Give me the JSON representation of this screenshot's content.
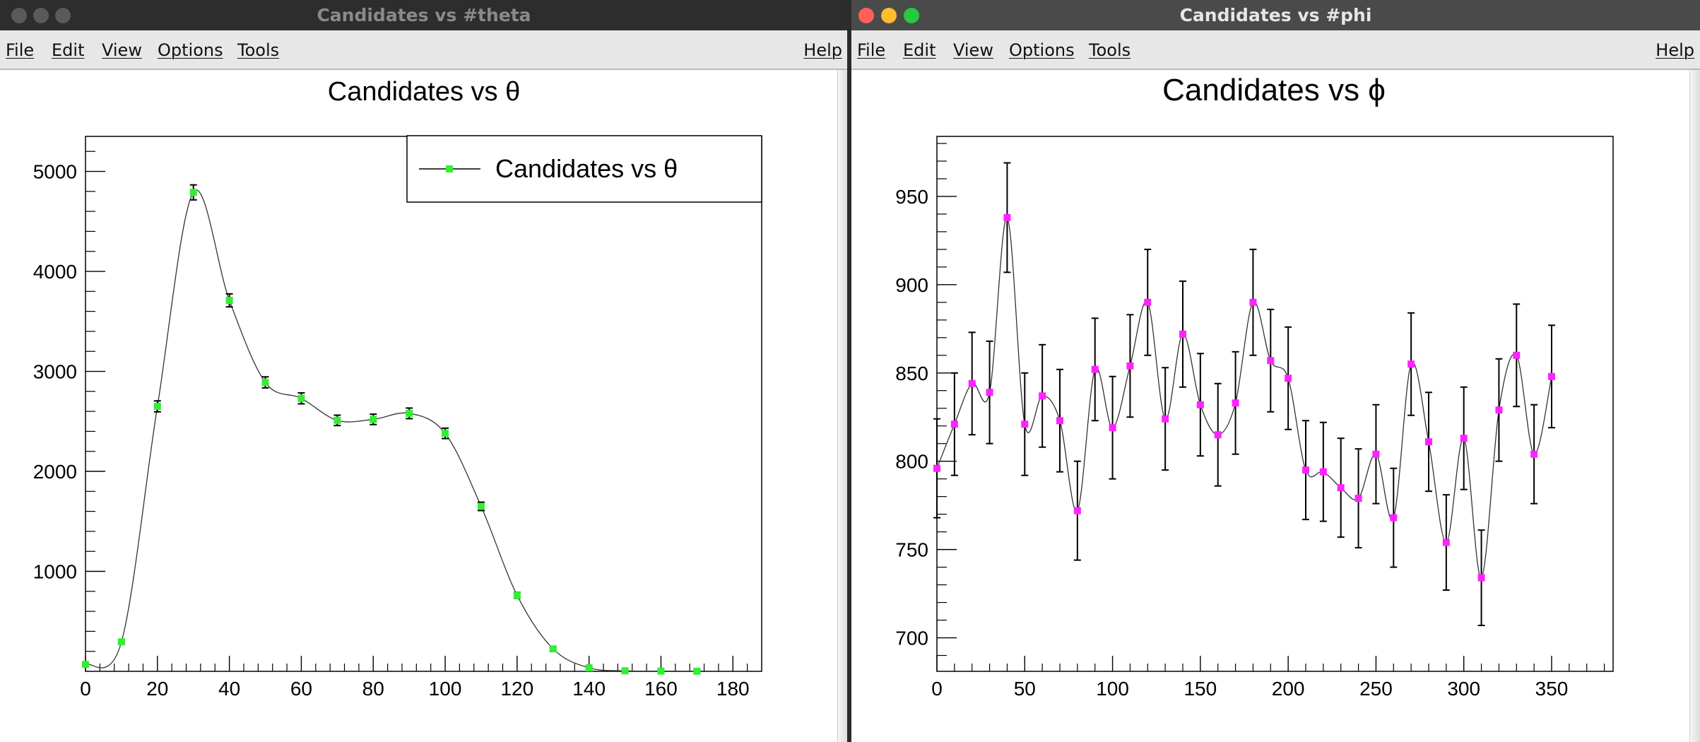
{
  "windows": [
    {
      "title": "Candidates vs #theta",
      "menu": [
        "File",
        "Edit",
        "View",
        "Options",
        "Tools"
      ],
      "help": "Help"
    },
    {
      "title": "Candidates vs #phi",
      "menu": [
        "File",
        "Edit",
        "View",
        "Options",
        "Tools"
      ],
      "help": "Help"
    }
  ],
  "colors": {
    "close": "#ff5f57",
    "minimize": "#febc2e",
    "zoom": "#28c840",
    "inactive_light": "#5a5a5a",
    "theta_marker": "#33ee33",
    "phi_marker": "#ff22ff"
  },
  "chart_data": [
    {
      "type": "line",
      "title": "Candidates vs θ",
      "xlabel": "",
      "ylabel": "",
      "xlim": [
        0,
        188
      ],
      "ylim": [
        0,
        5350
      ],
      "x_ticks": [
        0,
        20,
        40,
        60,
        80,
        100,
        120,
        140,
        160,
        180
      ],
      "y_ticks": [
        1000,
        2000,
        3000,
        4000,
        5000
      ],
      "grid": false,
      "legend": {
        "position": "top-right",
        "entries": [
          "Candidates vs θ"
        ]
      },
      "marker_color": "#33ee33",
      "series": [
        {
          "name": "Candidates vs θ",
          "x": [
            0,
            10,
            20,
            30,
            40,
            50,
            60,
            70,
            80,
            90,
            100,
            110,
            120,
            130,
            140,
            150,
            160,
            170
          ],
          "y": [
            70,
            295,
            2650,
            4790,
            3710,
            2890,
            2730,
            2510,
            2520,
            2580,
            2380,
            1650,
            760,
            225,
            35,
            5,
            2,
            1
          ],
          "err": [
            10,
            20,
            55,
            75,
            65,
            55,
            55,
            52,
            52,
            53,
            52,
            42,
            30,
            15,
            7,
            3,
            2,
            1
          ]
        }
      ]
    },
    {
      "type": "line",
      "title": "Candidates vs ϕ",
      "xlabel": "",
      "ylabel": "",
      "xlim": [
        0,
        385
      ],
      "ylim": [
        681,
        984
      ],
      "x_ticks": [
        0,
        50,
        100,
        150,
        200,
        250,
        300,
        350
      ],
      "y_ticks": [
        700,
        750,
        800,
        850,
        900,
        950
      ],
      "grid": false,
      "marker_color": "#ff22ff",
      "series": [
        {
          "name": "Candidates vs ϕ",
          "x": [
            0,
            10,
            20,
            30,
            40,
            50,
            60,
            70,
            80,
            90,
            100,
            110,
            120,
            130,
            140,
            150,
            160,
            170,
            180,
            190,
            200,
            210,
            220,
            230,
            240,
            250,
            260,
            270,
            280,
            290,
            300,
            310,
            320,
            330,
            340,
            350
          ],
          "y": [
            796,
            821,
            844,
            839,
            938,
            821,
            837,
            823,
            772,
            852,
            819,
            854,
            890,
            824,
            872,
            832,
            815,
            833,
            890,
            857,
            847,
            795,
            794,
            785,
            779,
            804,
            768,
            855,
            811,
            754,
            813,
            734,
            829,
            860,
            804,
            848
          ],
          "err": [
            28,
            29,
            29,
            29,
            31,
            29,
            29,
            29,
            28,
            29,
            29,
            29,
            30,
            29,
            30,
            29,
            29,
            29,
            30,
            29,
            29,
            28,
            28,
            28,
            28,
            28,
            28,
            29,
            28,
            27,
            29,
            27,
            29,
            29,
            28,
            29
          ]
        }
      ]
    }
  ]
}
